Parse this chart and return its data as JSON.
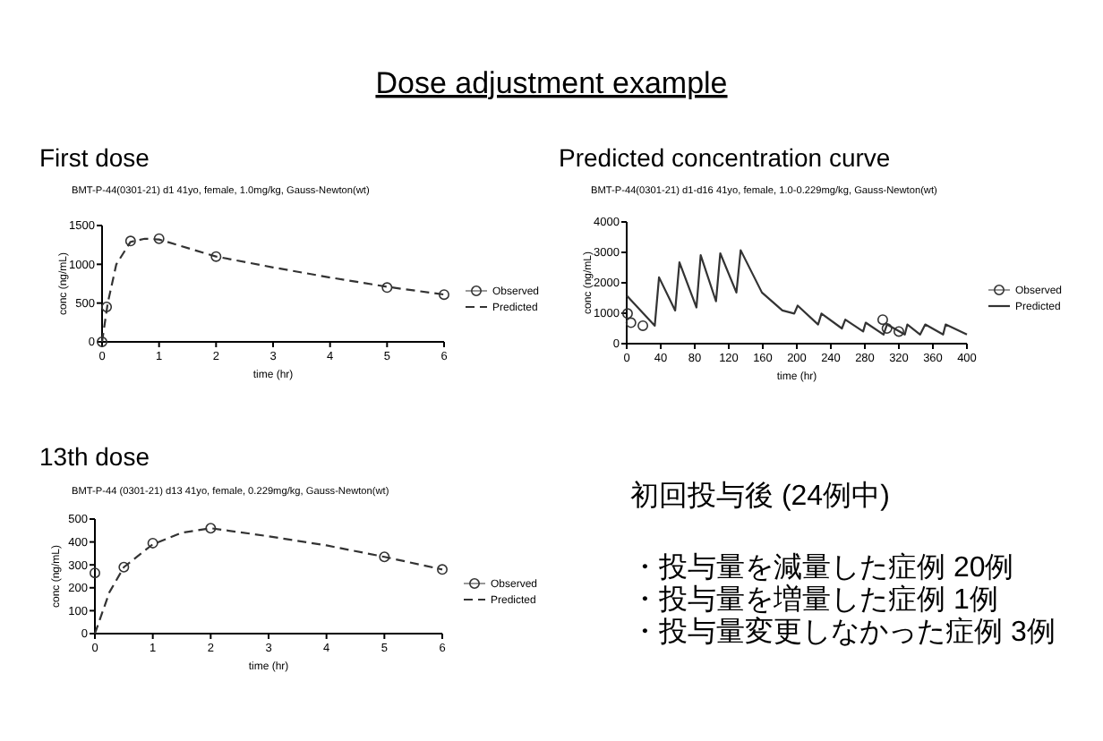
{
  "chart_data": [
    {
      "type": "other",
      "title": "Dose adjustment example"
    },
    {
      "type": "line",
      "title": "First dose",
      "subtitle": "BMT-P-44(0301-21) d1 41yo, female, 1.0mg/kg, Gauss-Newton(wt)",
      "xlabel": "time (hr)",
      "ylabel": "conc (ng/mL)",
      "xlim": [
        0,
        6
      ],
      "ylim": [
        0,
        1500
      ],
      "xticks": [
        0,
        1,
        2,
        3,
        4,
        5,
        6
      ],
      "yticks": [
        0,
        500,
        1000,
        1500
      ],
      "legend": "right",
      "series": [
        {
          "name": "Observed",
          "type": "scatter",
          "marker": "circle",
          "color": "#333333",
          "x": [
            0,
            0.08,
            0.5,
            1,
            2,
            5,
            6
          ],
          "values": [
            0,
            450,
            1300,
            1330,
            1100,
            700,
            610
          ]
        },
        {
          "name": "Predicted",
          "type": "line",
          "line_style": "dashed",
          "color": "#333333",
          "x": [
            0,
            0.1,
            0.25,
            0.5,
            0.75,
            1,
            2,
            3,
            4,
            5,
            6
          ],
          "values": [
            0,
            500,
            1000,
            1290,
            1330,
            1320,
            1100,
            960,
            830,
            710,
            610
          ]
        }
      ]
    },
    {
      "type": "line",
      "title": "Predicted concentration curve",
      "subtitle": "BMT-P-44(0301-21) d1-d16 41yo, female, 1.0-0.229mg/kg, Gauss-Newton(wt)",
      "xlabel": "time (hr)",
      "ylabel": "conc (ng/mL)",
      "xlim": [
        0,
        400
      ],
      "ylim": [
        0,
        4000
      ],
      "xticks": [
        0,
        40,
        80,
        120,
        160,
        200,
        240,
        280,
        320,
        360,
        400
      ],
      "yticks": [
        0,
        1000,
        2000,
        3000,
        4000
      ],
      "legend": "right",
      "series": [
        {
          "name": "Observed",
          "type": "scatter",
          "marker": "circle",
          "color": "#333333",
          "x": [
            1,
            5,
            19,
            301,
            306,
            320
          ],
          "values": [
            990,
            690,
            590,
            790,
            500,
            400
          ]
        },
        {
          "name": "Predicted",
          "type": "line",
          "line_style": "solid",
          "color": "#333333",
          "x": [
            0,
            33,
            38,
            57,
            62,
            82,
            87,
            105,
            110,
            129,
            134,
            159,
            183,
            197,
            201,
            225,
            229,
            253,
            257,
            278,
            281,
            302,
            306,
            327,
            330,
            345,
            351,
            372,
            375,
            400
          ],
          "values": [
            1580,
            590,
            2180,
            1090,
            2670,
            1190,
            2910,
            1390,
            2970,
            1680,
            3070,
            1680,
            1090,
            990,
            1250,
            630,
            990,
            500,
            790,
            400,
            690,
            300,
            630,
            300,
            630,
            300,
            630,
            300,
            630,
            300
          ]
        }
      ]
    },
    {
      "type": "line",
      "title": "13th dose",
      "subtitle": "BMT-P-44 (0301-21) d13 41yo, female, 0.229mg/kg, Gauss-Newton(wt)",
      "xlabel": "time (hr)",
      "ylabel": "conc (ng/mL)",
      "xlim": [
        0,
        6
      ],
      "ylim": [
        0,
        500
      ],
      "xticks": [
        0,
        1,
        2,
        3,
        4,
        5,
        6
      ],
      "yticks": [
        0,
        100,
        200,
        300,
        400,
        500
      ],
      "legend": "right",
      "series": [
        {
          "name": "Observed",
          "type": "scatter",
          "marker": "circle",
          "color": "#333333",
          "x": [
            0,
            0.5,
            1,
            2,
            5,
            6
          ],
          "values": [
            265,
            290,
            395,
            460,
            335,
            280
          ]
        },
        {
          "name": "Predicted",
          "type": "line",
          "line_style": "dashed",
          "color": "#333333",
          "x": [
            0,
            0.25,
            0.5,
            1,
            1.5,
            2,
            3,
            4,
            5,
            6
          ],
          "values": [
            0,
            180,
            290,
            390,
            440,
            460,
            425,
            385,
            335,
            280
          ]
        }
      ]
    },
    {
      "type": "other",
      "title": "初回投与後 (24例中)",
      "annotations": [
        "・投与量を減量した症例  20例",
        "・投与量を増量した症例    1例",
        "・投与量変更しなかった症例  3例"
      ]
    }
  ]
}
